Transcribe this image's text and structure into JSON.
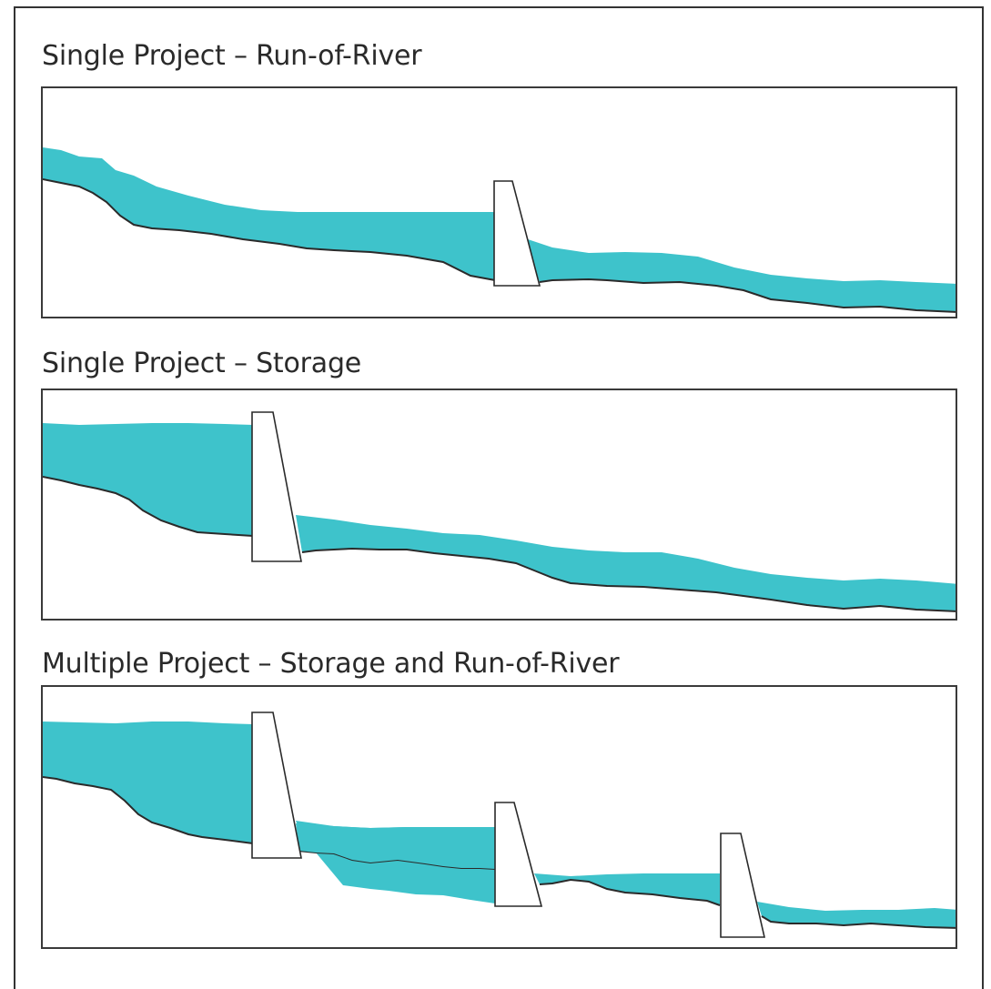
{
  "panels": [
    {
      "title": "Single Project – Run-of-River",
      "water_color": "#3ec3cb",
      "dam_count": 1
    },
    {
      "title": "Single Project – Storage",
      "water_color": "#3ec3cb",
      "dam_count": 1
    },
    {
      "title": "Multiple Project – Storage and Run-of-River",
      "water_color": "#3ec3cb",
      "dam_count": 3
    }
  ]
}
